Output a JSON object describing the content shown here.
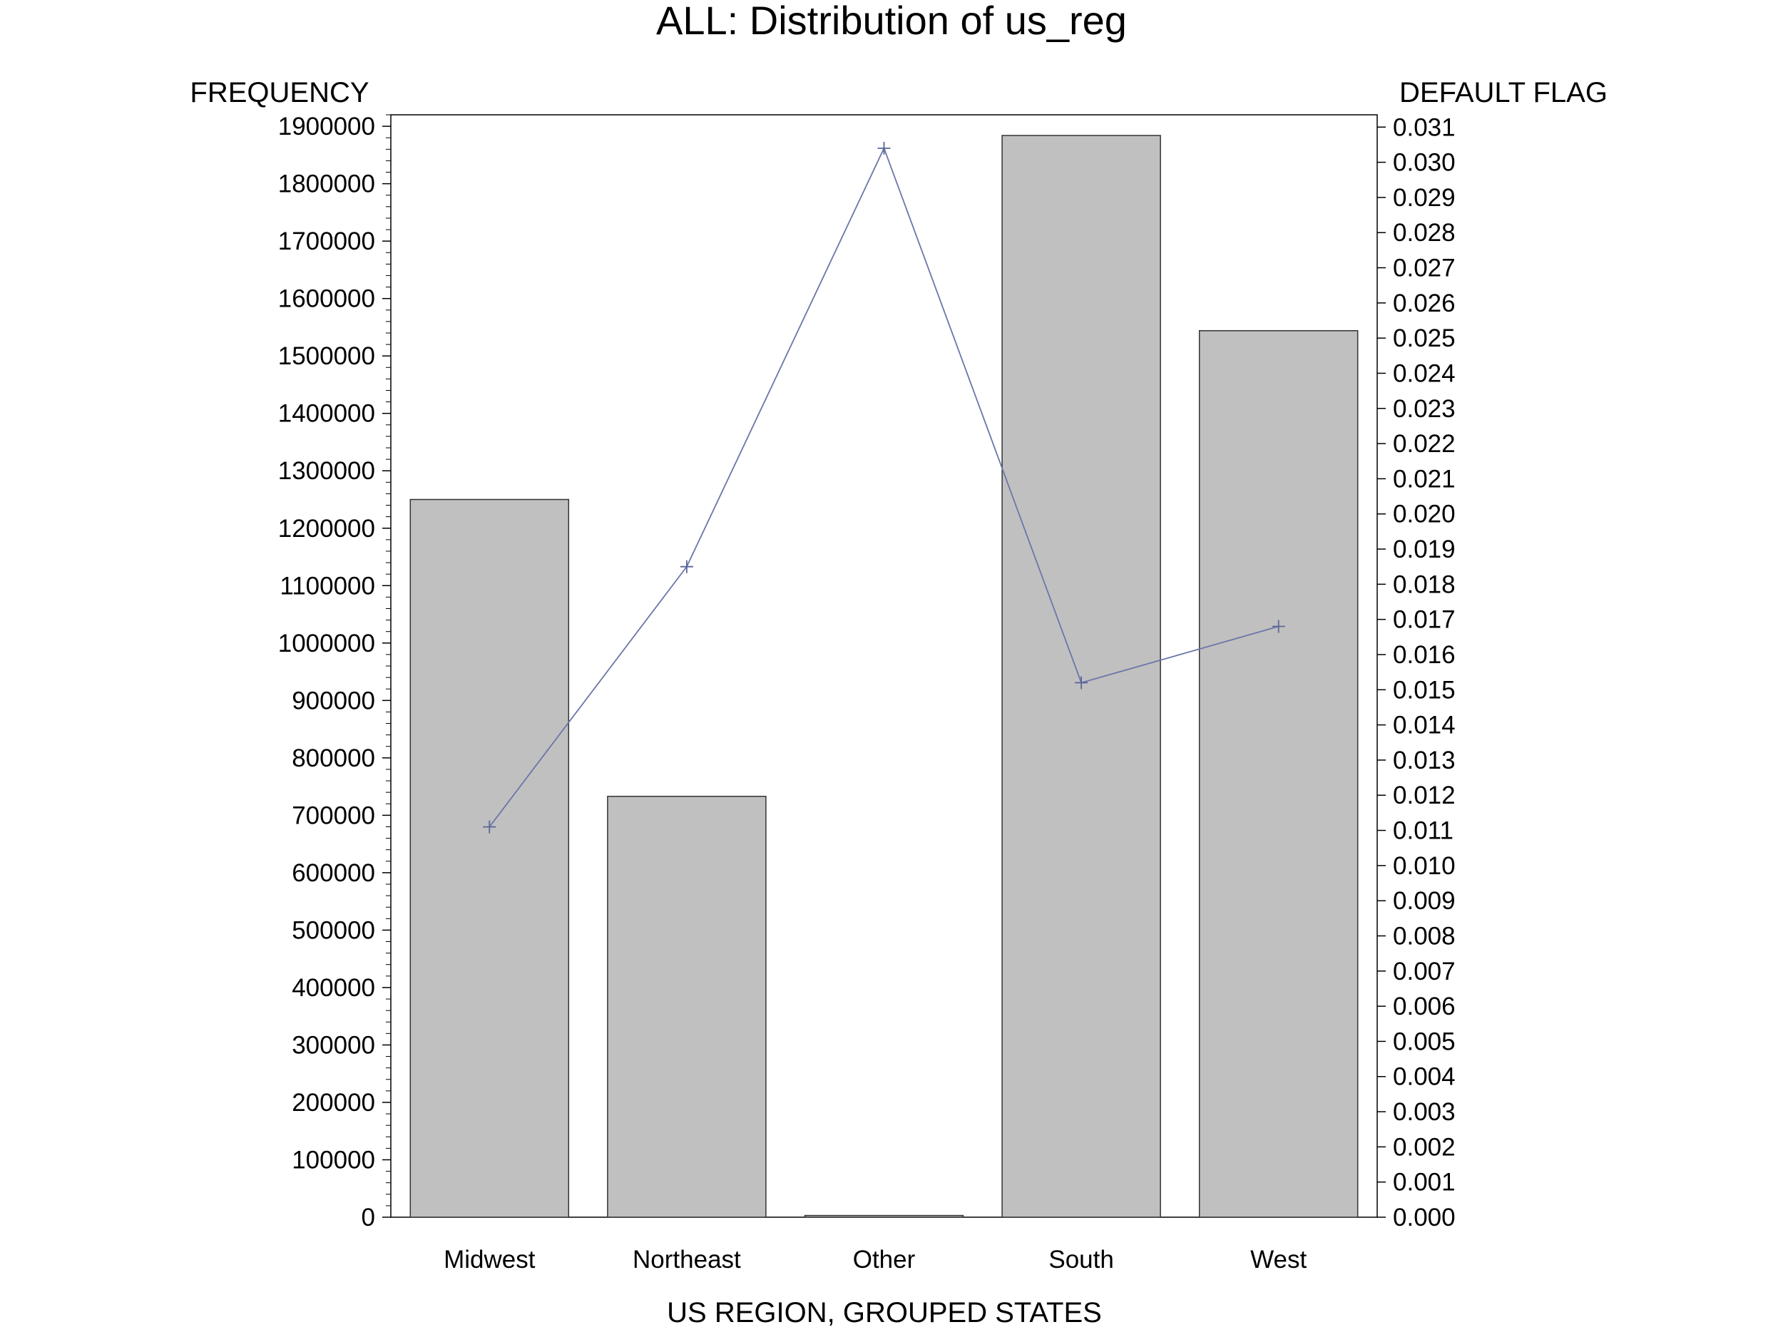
{
  "chart_data": {
    "type": "bar",
    "title": "ALL: Distribution of us_reg",
    "xlabel": "US REGION, GROUPED STATES",
    "ylabel": "FREQUENCY",
    "y2label": "DEFAULT FLAG",
    "categories": [
      "Midwest",
      "Northeast",
      "Other",
      "South",
      "West"
    ],
    "series": [
      {
        "type": "bar",
        "axis": "left",
        "values": [
          1250000,
          733000,
          3000,
          1884000,
          1544000
        ]
      },
      {
        "type": "line",
        "axis": "right",
        "values": [
          0.0111,
          0.0185,
          0.0304,
          0.0152,
          0.0168
        ]
      }
    ],
    "ylim": [
      0,
      1920000
    ],
    "y_ticks": [
      0,
      100000,
      200000,
      300000,
      400000,
      500000,
      600000,
      700000,
      800000,
      900000,
      1000000,
      1100000,
      1200000,
      1300000,
      1400000,
      1500000,
      1600000,
      1700000,
      1800000,
      1900000
    ],
    "y_tick_labels": [
      "0",
      "100000",
      "200000",
      "300000",
      "400000",
      "500000",
      "600000",
      "700000",
      "800000",
      "900000",
      "1000000",
      "1100000",
      "1200000",
      "1300000",
      "1400000",
      "1500000",
      "1600000",
      "1700000",
      "1800000",
      "1900000"
    ],
    "y2lim": [
      0,
      0.03135
    ],
    "y2_ticks": [
      0,
      0.001,
      0.002,
      0.003,
      0.004,
      0.005,
      0.006,
      0.007,
      0.008,
      0.009,
      0.01,
      0.011,
      0.012,
      0.013,
      0.014,
      0.015,
      0.016,
      0.017,
      0.018,
      0.019,
      0.02,
      0.021,
      0.022,
      0.023,
      0.024,
      0.025,
      0.026,
      0.027,
      0.028,
      0.029,
      0.03,
      0.031
    ],
    "y2_tick_labels": [
      "0.000",
      "0.001",
      "0.002",
      "0.003",
      "0.004",
      "0.005",
      "0.006",
      "0.007",
      "0.008",
      "0.009",
      "0.010",
      "0.011",
      "0.012",
      "0.013",
      "0.014",
      "0.015",
      "0.016",
      "0.017",
      "0.018",
      "0.019",
      "0.020",
      "0.021",
      "0.022",
      "0.023",
      "0.024",
      "0.025",
      "0.026",
      "0.027",
      "0.028",
      "0.029",
      "0.030",
      "0.031"
    ],
    "grid": false,
    "colors": {
      "bar_fill": "#c0c0c0",
      "bar_stroke": "#333333",
      "line": "#6b76a8",
      "marker": "#5a6696"
    }
  }
}
